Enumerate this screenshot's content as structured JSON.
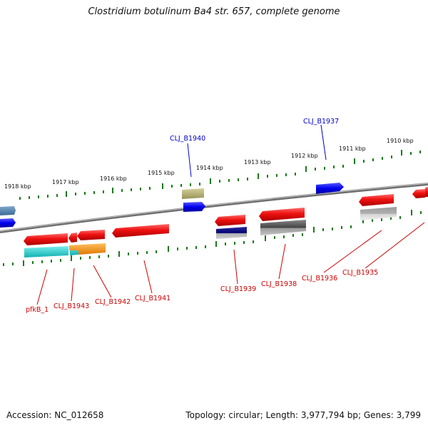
{
  "title": "Clostridium botulinum Ba4 str. 657, complete genome",
  "footer": {
    "accession": "Accession: NC_012658",
    "topology": "Topology: circular; Length: 3,977,794 bp; Genes: 3,799"
  },
  "scale_labels": [
    "1918 kbp",
    "1917 kbp",
    "1916 kbp",
    "1915 kbp",
    "1914 kbp",
    "1913 kbp",
    "1912 kbp",
    "1911 kbp",
    "1910 kbp"
  ],
  "genes_top": [
    "CLJ_B1940",
    "CLJ_B1937"
  ],
  "genes_bottom": [
    "pfkB_1",
    "CLJ_B1943",
    "CLJ_B1942",
    "CLJ_B1941",
    "CLJ_B1939",
    "CLJ_B1938",
    "CLJ_B1936",
    "CLJ_B1935"
  ],
  "colors": {
    "forward_strand": "#0000cc",
    "reverse_strand": "#cc0000",
    "tick": "#1a7a1a",
    "backbone": "#808080"
  }
}
